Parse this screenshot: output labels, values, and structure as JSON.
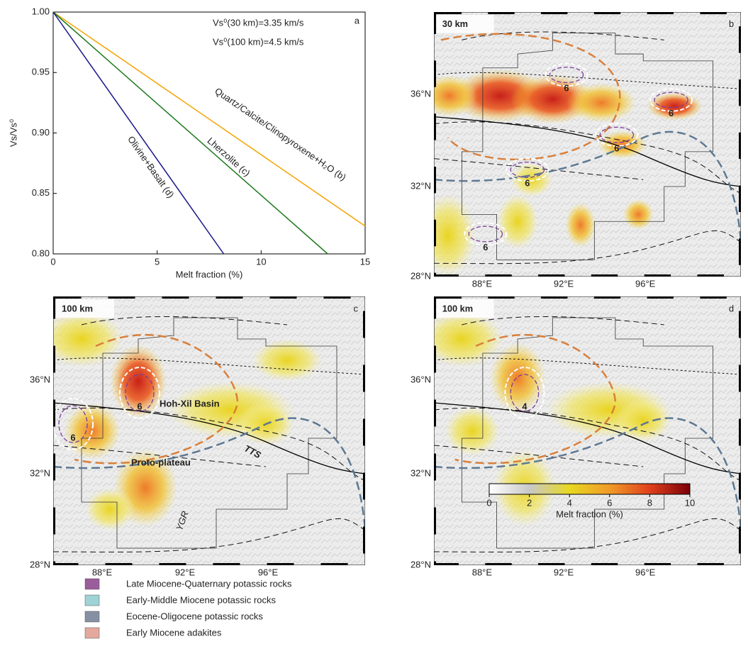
{
  "chart_data": {
    "type": "line",
    "panel_label": "a",
    "annotations": [
      "Vs⁰(30 km)=3.35 km/s",
      "Vs⁰(100 km)=4.5 km/s"
    ],
    "x_label": "Melt fraction (%)",
    "y_label": "Vs/Vs⁰",
    "xlim": [
      0,
      15
    ],
    "xticks": [
      0,
      5,
      10,
      15
    ],
    "ylim": [
      0.8,
      1.0
    ],
    "yticks": [
      {
        "value": 0.8,
        "label": "0.80"
      },
      0.85,
      {
        "value": 0.9,
        "label": "0.90"
      },
      0.95,
      {
        "value": 1.0,
        "label": "1.00"
      }
    ],
    "series": [
      {
        "name": "Quartz/Calcite/Clinopyroxene+H₂O (b)",
        "color": "#f5a300",
        "x": [
          0,
          15
        ],
        "values": [
          1.0,
          0.823
        ]
      },
      {
        "name": "Lherzolite (c)",
        "color": "#1e7a1e",
        "x": [
          0,
          13.2
        ],
        "values": [
          1.0,
          0.8
        ]
      },
      {
        "name": "Olivine+Basalt (d)",
        "color": "#16168a",
        "x": [
          0,
          8.2
        ],
        "values": [
          1.0,
          0.8
        ]
      }
    ]
  },
  "maps": [
    {
      "panel_label": "b",
      "depth": "30 km",
      "contour_labels": [
        "6",
        "6",
        "6",
        "6",
        "6"
      ]
    },
    {
      "panel_label": "c",
      "depth": "100 km",
      "contour_labels": [
        "6",
        "6"
      ],
      "annotations": [
        "Hoh-Xil Basin",
        "TTS",
        "Proto-plateau",
        "YGR"
      ]
    },
    {
      "panel_label": "d",
      "depth": "100 km",
      "contour_labels": [
        "4"
      ]
    }
  ],
  "lat_labels": [
    "28°N",
    "32°N",
    "36°N"
  ],
  "lon_labels": [
    "88°E",
    "92°E",
    "96°E"
  ],
  "legend": [
    {
      "name": "Late Miocene-Quaternary potassic rocks",
      "color": "#9b5c9b"
    },
    {
      "name": "Early-Middle Miocene potassic rocks",
      "color": "#9fd3d6"
    },
    {
      "name": "Eocene-Oligocene potassic rocks",
      "color": "#8590a3"
    },
    {
      "name": "Early Miocene adakites",
      "color": "#e3a99c"
    }
  ],
  "colorbar": {
    "label": "Melt fraction (%)",
    "lim": [
      0,
      10
    ],
    "ticks": [
      0,
      2,
      4,
      6,
      8,
      10
    ]
  }
}
